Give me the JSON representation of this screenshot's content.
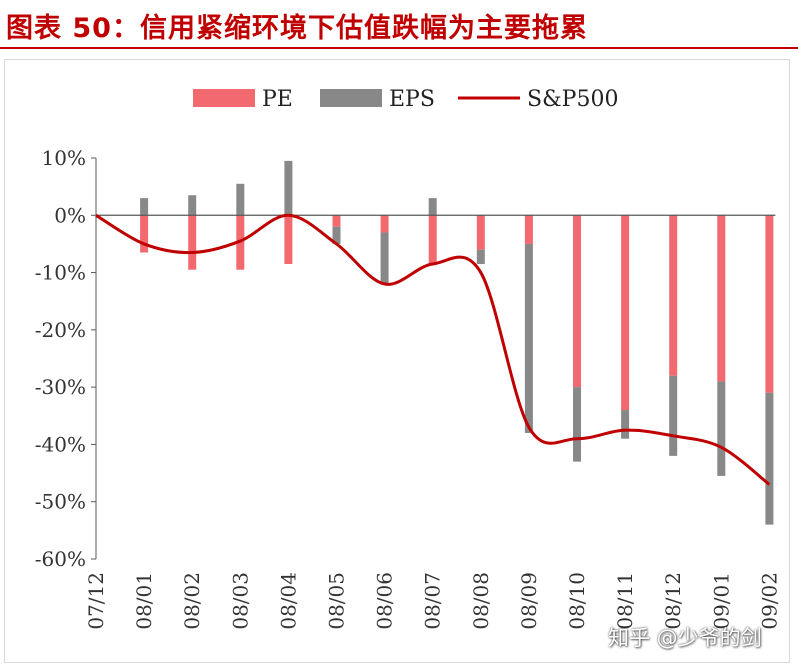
{
  "title": "图表 50：信用紧缩环境下估值跌幅为主要拖累",
  "watermark": "知乎 @少爷的剑",
  "colors": {
    "pe": "#f26a6f",
    "eps": "#888888",
    "sp500": "#c00000",
    "title": "#c00000"
  },
  "chart_data": {
    "type": "bar",
    "categories": [
      "07/12",
      "08/01",
      "08/02",
      "08/03",
      "08/04",
      "08/05",
      "08/06",
      "08/07",
      "08/08",
      "08/09",
      "08/10",
      "08/11",
      "08/12",
      "09/01",
      "09/02"
    ],
    "ylim": [
      -0.6,
      0.1
    ],
    "yticks": [
      0.1,
      0,
      -0.1,
      -0.2,
      -0.3,
      -0.4,
      -0.5,
      -0.6
    ],
    "ytick_labels": [
      "10%",
      "0%",
      "-10%",
      "-20%",
      "-30%",
      "-40%",
      "-50%",
      "-60%"
    ],
    "legend": {
      "position": "top",
      "labels": [
        "PE",
        "EPS",
        "S&P500"
      ]
    },
    "series": [
      {
        "name": "PE",
        "kind": "bar",
        "values": [
          0,
          -0.065,
          -0.095,
          -0.095,
          -0.085,
          -0.02,
          -0.03,
          -0.085,
          -0.06,
          -0.05,
          -0.3,
          -0.34,
          -0.28,
          -0.29,
          -0.31
        ]
      },
      {
        "name": "EPS",
        "kind": "bar",
        "values": [
          0,
          0.03,
          0.035,
          0.055,
          0.095,
          -0.03,
          -0.09,
          0.03,
          -0.025,
          -0.33,
          -0.13,
          -0.05,
          -0.14,
          -0.165,
          -0.23
        ]
      },
      {
        "name": "S&P500",
        "kind": "line",
        "values": [
          0,
          -0.05,
          -0.065,
          -0.045,
          0.0,
          -0.05,
          -0.12,
          -0.085,
          -0.1,
          -0.37,
          -0.39,
          -0.375,
          -0.385,
          -0.405,
          -0.47
        ]
      }
    ],
    "grid": false
  }
}
